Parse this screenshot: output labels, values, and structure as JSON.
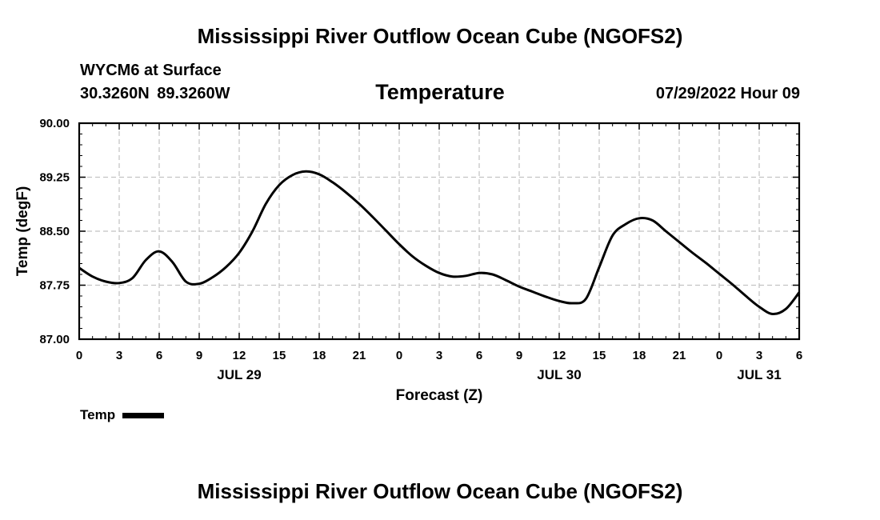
{
  "header": {
    "title_top": "Mississippi River Outflow Ocean Cube (NGOFS2)",
    "title_bottom": "Mississippi River Outflow Ocean Cube (NGOFS2)",
    "station_name": "WYCM6 at Surface",
    "coords": "30.3260N  89.3260W",
    "timestamp": "07/29/2022 Hour 09"
  },
  "legend": {
    "label": "Temp",
    "color": "#000000"
  },
  "chart_data": {
    "type": "line",
    "title": "Temperature",
    "xlabel": "Forecast (Z)",
    "ylabel": "Temp (degF)",
    "xlim": [
      0,
      54
    ],
    "ylim": [
      87.0,
      90.0
    ],
    "grid": true,
    "x_ticks": [
      0,
      3,
      6,
      9,
      12,
      15,
      18,
      21,
      24,
      27,
      30,
      33,
      36,
      39,
      42,
      45,
      48,
      51,
      54
    ],
    "x_tick_labels": [
      "0",
      "3",
      "6",
      "9",
      "12",
      "15",
      "18",
      "21",
      "0",
      "3",
      "6",
      "9",
      "12",
      "15",
      "18",
      "21",
      "0",
      "3",
      "6"
    ],
    "y_ticks": [
      87.0,
      87.75,
      88.5,
      89.25,
      90.0
    ],
    "y_tick_labels": [
      "87.00",
      "87.75",
      "88.50",
      "89.25",
      "90.00"
    ],
    "day_labels": [
      {
        "x": 12,
        "label": "JUL 29"
      },
      {
        "x": 36,
        "label": "JUL 30"
      },
      {
        "x": 51,
        "label": "JUL 31"
      }
    ],
    "series": [
      {
        "name": "Temp",
        "color": "#000000",
        "x": [
          0,
          1,
          2,
          3,
          4,
          5,
          6,
          7,
          8,
          9,
          10,
          11,
          12,
          13,
          14,
          15,
          16,
          17,
          18,
          19,
          20,
          21,
          22,
          23,
          24,
          25,
          26,
          27,
          28,
          29,
          30,
          31,
          32,
          33,
          34,
          35,
          36,
          37,
          38,
          39,
          40,
          41,
          42,
          43,
          44,
          45,
          46,
          47,
          48,
          49,
          50,
          51,
          52,
          53,
          54
        ],
        "values": [
          87.99,
          87.87,
          87.8,
          87.78,
          87.85,
          88.1,
          88.22,
          88.07,
          87.8,
          87.77,
          87.86,
          88.0,
          88.2,
          88.5,
          88.88,
          89.14,
          89.28,
          89.33,
          89.29,
          89.18,
          89.04,
          88.88,
          88.7,
          88.51,
          88.32,
          88.15,
          88.02,
          87.92,
          87.87,
          87.88,
          87.92,
          87.9,
          87.82,
          87.73,
          87.66,
          87.59,
          87.53,
          87.5,
          87.56,
          88.0,
          88.44,
          88.6,
          88.68,
          88.65,
          88.5,
          88.35,
          88.2,
          88.06,
          87.91,
          87.76,
          87.6,
          87.45,
          87.35,
          87.42,
          87.65
        ]
      }
    ]
  }
}
